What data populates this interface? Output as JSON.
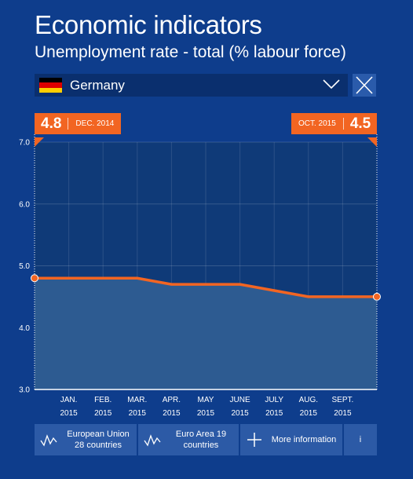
{
  "header": {
    "title": "Economic indicators",
    "subtitle": "Unemployment rate - total (% labour force)"
  },
  "country_select": {
    "selected": "Germany",
    "flag_colors": [
      "#000000",
      "#dd0000",
      "#ffce00"
    ]
  },
  "badges": {
    "start": {
      "value": "4.8",
      "date": "DEC. 2014"
    },
    "end": {
      "date": "OCT. 2015",
      "value": "4.5"
    }
  },
  "colors": {
    "background": "#0e3d8c",
    "plot_fill": "#0f3a78",
    "area_fill": "#2d5b91",
    "line": "#f26522",
    "badge": "#f26522",
    "button": "#2c5aa6"
  },
  "chart_data": {
    "type": "area",
    "x": [
      "DEC. 2014",
      "JAN. 2015",
      "FEB. 2015",
      "MAR. 2015",
      "APR. 2015",
      "MAY 2015",
      "JUNE 2015",
      "JULY 2015",
      "AUG. 2015",
      "SEPT. 2015",
      "OCT. 2015"
    ],
    "values": [
      4.8,
      4.8,
      4.8,
      4.8,
      4.7,
      4.7,
      4.7,
      4.6,
      4.5,
      4.5,
      4.5
    ],
    "x_tick_labels": [
      {
        "month": "JAN.",
        "year": "2015"
      },
      {
        "month": "FEB.",
        "year": "2015"
      },
      {
        "month": "MAR.",
        "year": "2015"
      },
      {
        "month": "APR.",
        "year": "2015"
      },
      {
        "month": "MAY",
        "year": "2015"
      },
      {
        "month": "JUNE",
        "year": "2015"
      },
      {
        "month": "JULY",
        "year": "2015"
      },
      {
        "month": "AUG.",
        "year": "2015"
      },
      {
        "month": "SEPT.",
        "year": "2015"
      }
    ],
    "y_ticks": [
      "3.0",
      "4.0",
      "5.0",
      "6.0",
      "7.0"
    ],
    "ylim": [
      3.0,
      7.0
    ],
    "grid": true
  },
  "footer": {
    "buttons": [
      {
        "label_line1": "European Union",
        "label_line2": "28 countries"
      },
      {
        "label_line1": "Euro Area 19",
        "label_line2": "countries"
      },
      {
        "label_line1": "More information",
        "label_line2": ""
      },
      {
        "label_line1": "i",
        "label_line2": ""
      }
    ]
  }
}
